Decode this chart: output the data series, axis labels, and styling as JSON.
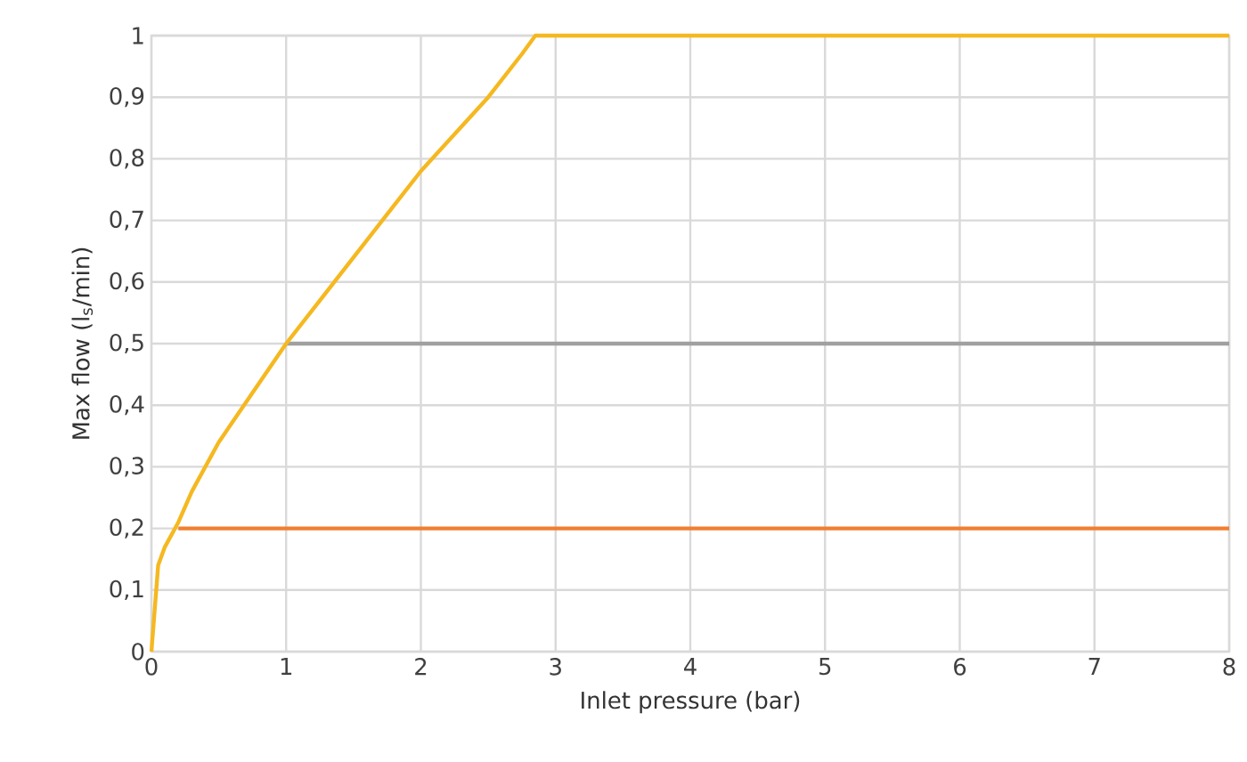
{
  "chart_data": {
    "type": "line",
    "xlabel": "Inlet pressure (bar)",
    "ylabel": "Max flow (l$_{s}$/min)",
    "xlim": [
      0,
      8
    ],
    "ylim": [
      0,
      1
    ],
    "xticks": [
      0,
      1,
      2,
      3,
      4,
      5,
      6,
      7,
      8
    ],
    "yticks": [
      0,
      {
        "value": 0.1,
        "label": "0,1"
      },
      {
        "value": 0.2,
        "label": "0,2"
      },
      {
        "value": 0.3,
        "label": "0,3"
      },
      {
        "value": 0.4,
        "label": "0,4"
      },
      {
        "value": 0.5,
        "label": "0,5"
      },
      {
        "value": 0.6,
        "label": "0,6"
      },
      {
        "value": 0.7,
        "label": "0,7"
      },
      {
        "value": 0.8,
        "label": "0,8"
      },
      {
        "value": 0.9,
        "label": "0,9"
      },
      1
    ],
    "grid": true,
    "marker": "none",
    "line_style": "solid",
    "series": [
      {
        "color": "#f07f30",
        "x": [
          0.2,
          8
        ],
        "values": [
          0.2,
          0.2
        ]
      },
      {
        "color": "#a0a0a0",
        "x": [
          1,
          8
        ],
        "values": [
          0.5,
          0.5
        ]
      },
      {
        "color": "#f5b820",
        "x": [
          0,
          0.05,
          0.1,
          0.2,
          0.3,
          0.5,
          0.75,
          1,
          1.25,
          1.5,
          1.75,
          2,
          2.25,
          2.5,
          2.75,
          2.85,
          2.9,
          8
        ],
        "values": [
          0,
          0.14,
          0.17,
          0.21,
          0.26,
          0.34,
          0.42,
          0.5,
          0.57,
          0.64,
          0.71,
          0.78,
          0.84,
          0.9,
          0.97,
          1,
          1,
          1
        ]
      }
    ]
  }
}
